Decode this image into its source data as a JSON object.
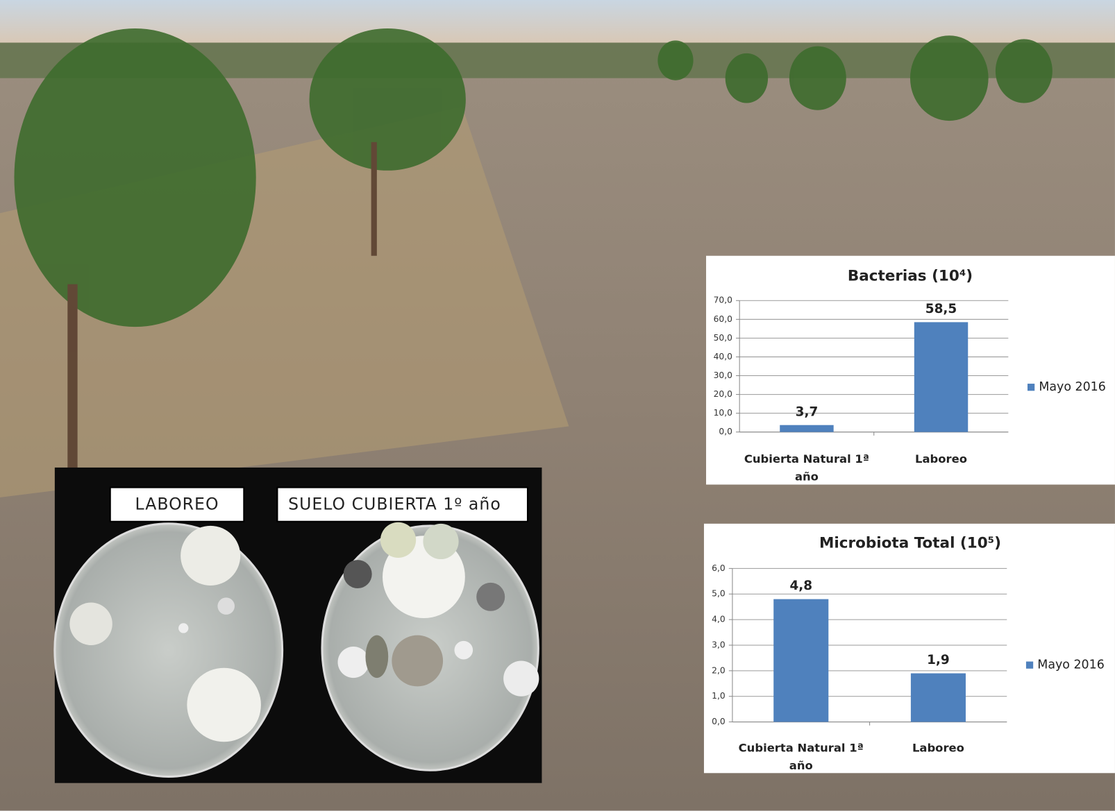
{
  "chart_data": [
    {
      "type": "bar",
      "title": "Bacterias (10⁴)",
      "categories": [
        "Cubierta Natural 1ª año",
        "Laboreo"
      ],
      "series": [
        {
          "name": "Mayo 2016",
          "color": "#4f81bd",
          "values": [
            3.7,
            58.5
          ],
          "value_labels": [
            "3,7",
            "58,5"
          ]
        }
      ],
      "ylim": [
        0,
        70
      ],
      "yticks": [
        {
          "value": 0,
          "label": "0,0"
        },
        {
          "value": 10,
          "label": "10,0"
        },
        {
          "value": 20,
          "label": "20,0"
        },
        {
          "value": 30,
          "label": "30,0"
        },
        {
          "value": 40,
          "label": "40,0"
        },
        {
          "value": 50,
          "label": "50,0"
        },
        {
          "value": 60,
          "label": "60,0"
        },
        {
          "value": 70,
          "label": "70,0"
        }
      ],
      "grid": true,
      "legend": "right"
    },
    {
      "type": "bar",
      "title": "Microbiota Total (10⁵)",
      "categories": [
        "Cubierta Natural 1ª año",
        "Laboreo"
      ],
      "series": [
        {
          "name": "Mayo 2016",
          "color": "#4f81bd",
          "values": [
            4.8,
            1.9
          ],
          "value_labels": [
            "4,8",
            "1,9"
          ]
        }
      ],
      "ylim": [
        0,
        6
      ],
      "yticks": [
        {
          "value": 0,
          "label": "0,0"
        },
        {
          "value": 1,
          "label": "1,0"
        },
        {
          "value": 2,
          "label": "2,0"
        },
        {
          "value": 3,
          "label": "3,0"
        },
        {
          "value": 4,
          "label": "4,0"
        },
        {
          "value": 5,
          "label": "5,0"
        },
        {
          "value": 6,
          "label": "6,0"
        }
      ],
      "grid": true,
      "legend": "right"
    }
  ],
  "photo_labels": [
    "LABOREO",
    "SUELO CUBIERTA 1º año"
  ]
}
